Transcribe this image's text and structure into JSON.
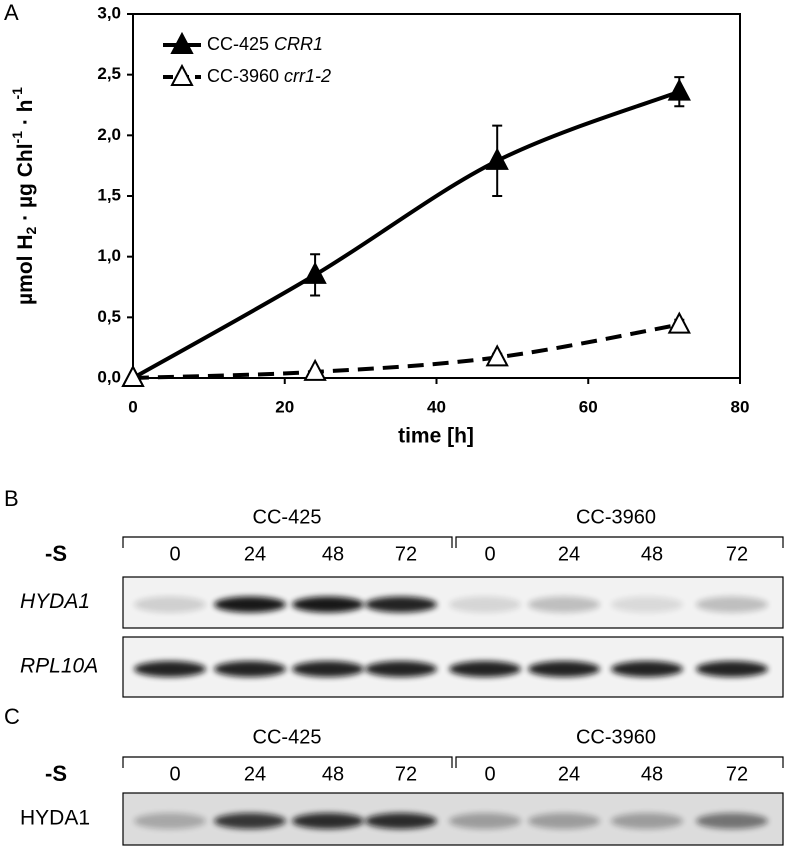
{
  "panel_labels": [
    "A",
    "B",
    "C"
  ],
  "chart_data": {
    "type": "line",
    "y_label": [
      "µmol H",
      "2",
      " · µg Chl",
      "-1",
      " · h",
      "-1"
    ],
    "x_label": "time [h]",
    "x": [
      0,
      24,
      48,
      72
    ],
    "series": [
      {
        "name": "CC-425 CRR1",
        "color": "#000000",
        "line_style": "solid",
        "marker": "filled",
        "values": [
          0,
          0.85,
          1.79,
          2.36
        ],
        "errors": [
          0,
          0.17,
          0.29,
          0.12
        ]
      },
      {
        "name": "CC-3960 crr1-2",
        "color": "#000000",
        "line_style": "dashed",
        "marker": "open",
        "values": [
          0,
          0.05,
          0.17,
          0.44
        ],
        "errors": [
          0,
          0.02,
          0.03,
          0.04
        ]
      }
    ],
    "xlim": [
      0,
      80
    ],
    "xticks": [
      0,
      20,
      40,
      60,
      80
    ],
    "ylim": [
      0,
      3
    ],
    "yticks": [
      {
        "value": 0,
        "label": "0,0"
      },
      {
        "value": 0.5,
        "label": "0,5"
      },
      {
        "value": 1,
        "label": "1,0"
      },
      {
        "value": 1.5,
        "label": "1,5"
      },
      {
        "value": 2,
        "label": "2,0"
      },
      {
        "value": 2.5,
        "label": "2,5"
      },
      {
        "value": 3,
        "label": "3,0"
      }
    ],
    "legend": "upper-left"
  },
  "blot_b": {
    "groups": [
      "CC-425",
      "CC-3960"
    ],
    "treatment": "-S",
    "lanes": [
      "0",
      "24",
      "48",
      "72",
      "0",
      "24",
      "48",
      "72"
    ],
    "rows": [
      "HYDA1",
      "RPL10A"
    ]
  },
  "blot_c": {
    "groups": [
      "CC-425",
      "CC-3960"
    ],
    "treatment": "-S",
    "lanes": [
      "0",
      "24",
      "48",
      "72",
      "0",
      "24",
      "48",
      "72"
    ],
    "rows": [
      "HYDA1"
    ]
  }
}
